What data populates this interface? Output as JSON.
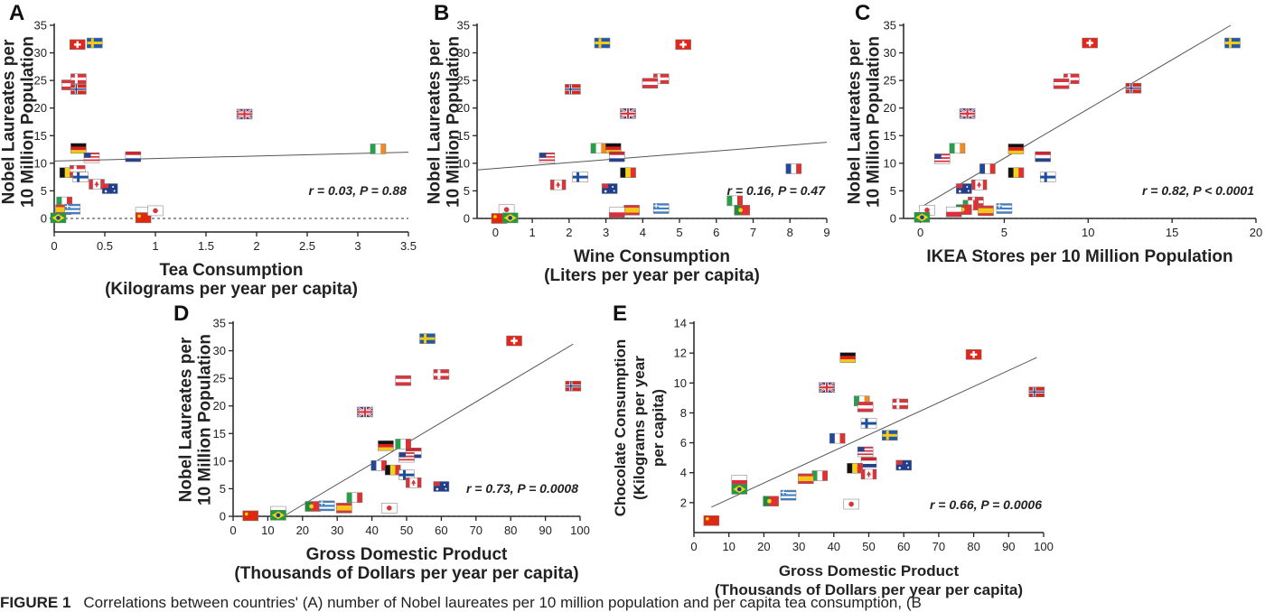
{
  "figure": {
    "caption_label": "FIGURE 1",
    "caption_text": "Correlations between countries' (A) number of Nobel laureates per 10 million population and per capita tea consumption, (B"
  },
  "chart_data": [
    {
      "id": "A",
      "type": "scatter",
      "panel_label": "A",
      "xlabel": [
        "Tea Consumption",
        "(Kilograms per year per capita)"
      ],
      "ylabel": [
        "Nobel Laureates per",
        "10 Million Population"
      ],
      "xlim": [
        0,
        3.5
      ],
      "ylim": [
        0,
        35
      ],
      "xticks": [
        0,
        0.5,
        1,
        1.5,
        2,
        2.5,
        3,
        3.5
      ],
      "xtick_labels": [
        "0",
        "0.5",
        "1",
        "1.5",
        "2",
        "2.5",
        "3",
        "3.5"
      ],
      "yticks": [
        0,
        5,
        10,
        15,
        20,
        25,
        30,
        35
      ],
      "zero_line": true,
      "annotation": "r = 0.03, P = 0.88",
      "trend": [
        [
          0,
          10.4
        ],
        [
          3.5,
          12.0
        ]
      ],
      "points": [
        {
          "country": "switzerland",
          "x": 0.23,
          "y": 31.5
        },
        {
          "country": "sweden",
          "x": 0.4,
          "y": 31.8
        },
        {
          "country": "austria",
          "x": 0.15,
          "y": 24.2
        },
        {
          "country": "denmark",
          "x": 0.24,
          "y": 25.3
        },
        {
          "country": "norway",
          "x": 0.24,
          "y": 23.4
        },
        {
          "country": "uk",
          "x": 1.88,
          "y": 18.9
        },
        {
          "country": "germany",
          "x": 0.24,
          "y": 12.7
        },
        {
          "country": "ireland",
          "x": 3.2,
          "y": 12.6
        },
        {
          "country": "usa",
          "x": 0.37,
          "y": 11.0
        },
        {
          "country": "netherlands",
          "x": 0.78,
          "y": 11.2
        },
        {
          "country": "belgium",
          "x": 0.13,
          "y": 8.3
        },
        {
          "country": "denmark",
          "x": 0.23,
          "y": 8.7
        },
        {
          "country": "finland",
          "x": 0.26,
          "y": 7.5
        },
        {
          "country": "canada",
          "x": 0.42,
          "y": 6.2
        },
        {
          "country": "australia",
          "x": 0.55,
          "y": 5.4
        },
        {
          "country": "italy",
          "x": 0.1,
          "y": 3.0
        },
        {
          "country": "spain",
          "x": 0.09,
          "y": 1.6
        },
        {
          "country": "greece",
          "x": 0.18,
          "y": 1.7
        },
        {
          "country": "poland",
          "x": 0.88,
          "y": 1.1
        },
        {
          "country": "china",
          "x": 0.88,
          "y": 0.1
        },
        {
          "country": "japan",
          "x": 1.0,
          "y": 1.4
        },
        {
          "country": "brazil",
          "x": 0.04,
          "y": 0.1
        }
      ]
    },
    {
      "id": "B",
      "type": "scatter",
      "panel_label": "B",
      "xlabel": [
        "Wine Consumption",
        "(Liters per year per capita)"
      ],
      "ylabel": [
        "Nobel Laureates per",
        "10 Million Population"
      ],
      "xlim": [
        -0.5,
        9
      ],
      "ylim": [
        0,
        35
      ],
      "xticks": [
        0,
        1,
        2,
        3,
        4,
        5,
        6,
        7,
        8,
        9
      ],
      "xtick_labels": [
        "0",
        "1",
        "2",
        "3",
        "4",
        "5",
        "6",
        "7",
        "8",
        "9"
      ],
      "yticks": [
        0,
        5,
        10,
        15,
        20,
        25,
        30,
        35
      ],
      "zero_line": true,
      "annotation": "r = 0.16, P = 0.47",
      "trend": [
        [
          -0.5,
          8.8
        ],
        [
          9,
          13.8
        ]
      ],
      "points": [
        {
          "country": "sweden",
          "x": 2.9,
          "y": 31.8
        },
        {
          "country": "switzerland",
          "x": 5.1,
          "y": 31.5
        },
        {
          "country": "denmark",
          "x": 4.5,
          "y": 25.3
        },
        {
          "country": "austria",
          "x": 4.2,
          "y": 24.5
        },
        {
          "country": "norway",
          "x": 2.1,
          "y": 23.4
        },
        {
          "country": "uk",
          "x": 3.6,
          "y": 19.0
        },
        {
          "country": "ireland",
          "x": 2.8,
          "y": 12.7
        },
        {
          "country": "germany",
          "x": 3.2,
          "y": 12.7
        },
        {
          "country": "netherlands",
          "x": 3.3,
          "y": 11.2
        },
        {
          "country": "usa",
          "x": 1.4,
          "y": 11.0
        },
        {
          "country": "france",
          "x": 8.1,
          "y": 9.0
        },
        {
          "country": "belgium",
          "x": 3.6,
          "y": 8.3
        },
        {
          "country": "finland",
          "x": 2.3,
          "y": 7.5
        },
        {
          "country": "canada",
          "x": 1.7,
          "y": 6.1
        },
        {
          "country": "australia",
          "x": 3.1,
          "y": 5.4
        },
        {
          "country": "italy",
          "x": 6.5,
          "y": 3.2
        },
        {
          "country": "greece",
          "x": 4.5,
          "y": 1.8
        },
        {
          "country": "portugal",
          "x": 6.7,
          "y": 1.5
        },
        {
          "country": "spain",
          "x": 3.7,
          "y": 1.5
        },
        {
          "country": "poland",
          "x": 3.3,
          "y": 1.1
        },
        {
          "country": "japan",
          "x": 0.3,
          "y": 1.6
        },
        {
          "country": "china",
          "x": 0.1,
          "y": 0.0
        },
        {
          "country": "brazil",
          "x": 0.4,
          "y": 0.1
        }
      ]
    },
    {
      "id": "C",
      "type": "scatter",
      "panel_label": "C",
      "xlabel": [
        "IKEA Stores per 10 Million Population"
      ],
      "ylabel": [
        "Nobel Laureates per",
        "10 Million Population"
      ],
      "xlim": [
        -1,
        20
      ],
      "ylim": [
        0,
        35
      ],
      "xticks": [
        0,
        5,
        10,
        15,
        20
      ],
      "xtick_labels": [
        "0",
        "5",
        "10",
        "15",
        "20"
      ],
      "yticks": [
        0,
        5,
        10,
        15,
        20,
        25,
        30,
        35
      ],
      "zero_line": true,
      "annotation": "r = 0.82, P < 0.0001",
      "trend": [
        [
          0,
          2.0
        ],
        [
          18.5,
          35
        ]
      ],
      "points": [
        {
          "country": "sweden",
          "x": 18.6,
          "y": 31.8
        },
        {
          "country": "switzerland",
          "x": 10.1,
          "y": 31.8
        },
        {
          "country": "denmark",
          "x": 9.0,
          "y": 25.3
        },
        {
          "country": "austria",
          "x": 8.4,
          "y": 24.4
        },
        {
          "country": "norway",
          "x": 12.7,
          "y": 23.6
        },
        {
          "country": "uk",
          "x": 2.8,
          "y": 19.0
        },
        {
          "country": "ireland",
          "x": 2.2,
          "y": 12.7
        },
        {
          "country": "germany",
          "x": 5.7,
          "y": 12.6
        },
        {
          "country": "netherlands",
          "x": 7.3,
          "y": 11.2
        },
        {
          "country": "usa",
          "x": 1.3,
          "y": 10.8
        },
        {
          "country": "france",
          "x": 4.0,
          "y": 9.0
        },
        {
          "country": "belgium",
          "x": 5.7,
          "y": 8.3
        },
        {
          "country": "finland",
          "x": 7.6,
          "y": 7.5
        },
        {
          "country": "canada",
          "x": 3.5,
          "y": 6.1
        },
        {
          "country": "australia",
          "x": 2.6,
          "y": 5.4
        },
        {
          "country": "denmark",
          "x": 3.3,
          "y": 3.0
        },
        {
          "country": "italy",
          "x": 3.0,
          "y": 2.4
        },
        {
          "country": "portugal",
          "x": 2.6,
          "y": 1.6
        },
        {
          "country": "spain",
          "x": 3.9,
          "y": 1.4
        },
        {
          "country": "greece",
          "x": 5.0,
          "y": 1.8
        },
        {
          "country": "poland",
          "x": 2.0,
          "y": 1.2
        },
        {
          "country": "japan",
          "x": 0.4,
          "y": 1.5
        },
        {
          "country": "brazil",
          "x": 0.1,
          "y": 0.2
        }
      ]
    },
    {
      "id": "D",
      "type": "scatter",
      "panel_label": "D",
      "xlabel": [
        "Gross Domestic Product",
        "(Thousands of Dollars per year per capita)"
      ],
      "ylabel": [
        "Nobel Laureates per",
        "10 Million Population"
      ],
      "xlim": [
        0,
        100
      ],
      "ylim": [
        0,
        35
      ],
      "xticks": [
        0,
        10,
        20,
        30,
        40,
        50,
        60,
        70,
        80,
        90,
        100
      ],
      "xtick_labels": [
        "0",
        "10",
        "20",
        "30",
        "40",
        "50",
        "60",
        "70",
        "80",
        "90",
        "100"
      ],
      "yticks": [
        0,
        5,
        10,
        15,
        20,
        25,
        30,
        35
      ],
      "zero_line": true,
      "annotation": "r = 0.73, P = 0.0008",
      "trend": [
        [
          14.5,
          0
        ],
        [
          98,
          31.2
        ]
      ],
      "points": [
        {
          "country": "sweden",
          "x": 56,
          "y": 32.2
        },
        {
          "country": "switzerland",
          "x": 81,
          "y": 31.8
        },
        {
          "country": "denmark",
          "x": 60,
          "y": 25.7
        },
        {
          "country": "austria",
          "x": 49,
          "y": 24.6
        },
        {
          "country": "norway",
          "x": 98,
          "y": 23.6
        },
        {
          "country": "uk",
          "x": 38,
          "y": 18.9
        },
        {
          "country": "germany",
          "x": 44,
          "y": 12.8
        },
        {
          "country": "italy",
          "x": 49,
          "y": 13.1
        },
        {
          "country": "netherlands",
          "x": 52,
          "y": 11.5
        },
        {
          "country": "usa",
          "x": 50,
          "y": 10.7
        },
        {
          "country": "france",
          "x": 42,
          "y": 9.2
        },
        {
          "country": "belgium",
          "x": 46,
          "y": 8.4
        },
        {
          "country": "finland",
          "x": 50,
          "y": 7.5
        },
        {
          "country": "canada",
          "x": 52,
          "y": 6.1
        },
        {
          "country": "australia",
          "x": 60,
          "y": 5.4
        },
        {
          "country": "italy",
          "x": 35,
          "y": 3.4
        },
        {
          "country": "portugal",
          "x": 23,
          "y": 1.8
        },
        {
          "country": "greece",
          "x": 27,
          "y": 1.9
        },
        {
          "country": "spain",
          "x": 32,
          "y": 1.5
        },
        {
          "country": "poland",
          "x": 13,
          "y": 0.9
        },
        {
          "country": "japan",
          "x": 45,
          "y": 1.5
        },
        {
          "country": "china",
          "x": 5,
          "y": 0.1
        },
        {
          "country": "brazil",
          "x": 13,
          "y": 0.2
        }
      ]
    },
    {
      "id": "E",
      "type": "scatter",
      "panel_label": "E",
      "xlabel": [
        "Gross Domestic Product",
        "(Thousands of Dollars per year per capita)"
      ],
      "ylabel": [
        "Chocolate Consumption",
        "(Kilograms per year",
        "per capita)"
      ],
      "xlim": [
        0,
        100
      ],
      "ylim": [
        0,
        14
      ],
      "xticks": [
        0,
        10,
        20,
        30,
        40,
        50,
        60,
        70,
        80,
        90,
        100
      ],
      "xtick_labels": [
        "0",
        "10",
        "20",
        "30",
        "40",
        "50",
        "60",
        "70",
        "80",
        "90",
        "100"
      ],
      "yticks": [
        2,
        4,
        6,
        8,
        10,
        12,
        14
      ],
      "zero_line": false,
      "annotation": "r = 0.66, P = 0.0006",
      "trend": [
        [
          5,
          1.7
        ],
        [
          98,
          11.7
        ]
      ],
      "points": [
        {
          "country": "germany",
          "x": 44,
          "y": 11.7
        },
        {
          "country": "switzerland",
          "x": 80,
          "y": 11.9
        },
        {
          "country": "uk",
          "x": 38,
          "y": 9.7
        },
        {
          "country": "norway",
          "x": 98,
          "y": 9.4
        },
        {
          "country": "ireland",
          "x": 48,
          "y": 8.8
        },
        {
          "country": "austria",
          "x": 49,
          "y": 8.4
        },
        {
          "country": "denmark",
          "x": 59,
          "y": 8.6
        },
        {
          "country": "finland",
          "x": 50,
          "y": 7.3
        },
        {
          "country": "france",
          "x": 41,
          "y": 6.3
        },
        {
          "country": "sweden",
          "x": 56,
          "y": 6.5
        },
        {
          "country": "usa",
          "x": 49,
          "y": 5.4
        },
        {
          "country": "netherlands",
          "x": 50,
          "y": 4.7
        },
        {
          "country": "australia",
          "x": 60,
          "y": 4.5
        },
        {
          "country": "belgium",
          "x": 46,
          "y": 4.3
        },
        {
          "country": "canada",
          "x": 50,
          "y": 3.9
        },
        {
          "country": "italy",
          "x": 36,
          "y": 3.8
        },
        {
          "country": "spain",
          "x": 32,
          "y": 3.6
        },
        {
          "country": "poland",
          "x": 13,
          "y": 3.5
        },
        {
          "country": "brazil",
          "x": 13,
          "y": 2.9
        },
        {
          "country": "greece",
          "x": 27,
          "y": 2.5
        },
        {
          "country": "portugal",
          "x": 22,
          "y": 2.1
        },
        {
          "country": "japan",
          "x": 45,
          "y": 1.9
        },
        {
          "country": "china",
          "x": 5,
          "y": 0.8
        }
      ]
    }
  ]
}
